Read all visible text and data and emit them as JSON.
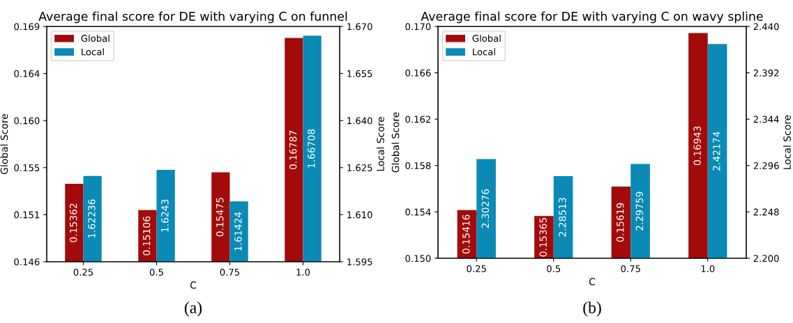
{
  "chart_data": [
    {
      "type": "bar",
      "title": "Average final score for DE with varying C on funnel",
      "xlabel": "C",
      "ylabel": "Global Score",
      "y2label": "Local Score",
      "categories": [
        "0.25",
        "0.5",
        "0.75",
        "1.0"
      ],
      "series": [
        {
          "name": "Global",
          "color": "#a30b0b",
          "values": [
            0.15362,
            0.15106,
            0.15475,
            0.16787
          ],
          "axis": "y"
        },
        {
          "name": "Local",
          "color": "#0a8ab5",
          "values": [
            1.62236,
            1.6243,
            1.61424,
            1.66708
          ],
          "axis": "y2"
        }
      ],
      "ylim": [
        0.146,
        0.169
      ],
      "yticks": [
        0.146,
        {
          "value": 0.1506,
          "label": "0.151"
        },
        {
          "value": 0.1552,
          "label": "0.155"
        },
        {
          "value": 0.1598,
          "label": "0.160"
        },
        {
          "value": 0.1644,
          "label": "0.164"
        },
        0.169
      ],
      "y2lim": [
        1.595,
        1.67
      ],
      "y2ticks": [
        1.595,
        {
          "value": 1.61,
          "label": "1.610"
        },
        1.625,
        {
          "value": 1.64,
          "label": "1.640"
        },
        1.655,
        {
          "value": 1.67,
          "label": "1.670"
        }
      ],
      "legend": "top left",
      "data_labels": true,
      "grid": false,
      "annotations": [
        "(a)"
      ]
    },
    {
      "type": "bar",
      "title": "Average final score for DE with varying C on wavy spline",
      "xlabel": "C",
      "ylabel": "Global Score",
      "y2label": "Local Score",
      "categories": [
        "0.25",
        "0.5",
        "0.75",
        "1.0"
      ],
      "series": [
        {
          "name": "Global",
          "color": "#a30b0b",
          "values": [
            0.15416,
            0.15365,
            0.15619,
            0.16943
          ],
          "axis": "y"
        },
        {
          "name": "Local",
          "color": "#0a8ab5",
          "values": [
            2.30276,
            2.28513,
            2.29759,
            2.42174
          ],
          "axis": "y2"
        }
      ],
      "ylim": [
        0.15,
        0.17
      ],
      "yticks": [
        {
          "value": 0.15,
          "label": "0.150"
        },
        0.154,
        0.158,
        0.162,
        0.166,
        {
          "value": 0.17,
          "label": "0.170"
        }
      ],
      "y2lim": [
        2.2,
        2.44
      ],
      "y2ticks": [
        {
          "value": 2.2,
          "label": "2.200"
        },
        2.248,
        2.296,
        2.344,
        2.392,
        {
          "value": 2.44,
          "label": "2.440"
        }
      ],
      "legend": "top left",
      "data_labels": true,
      "grid": false,
      "annotations": [
        "(b)"
      ]
    }
  ]
}
